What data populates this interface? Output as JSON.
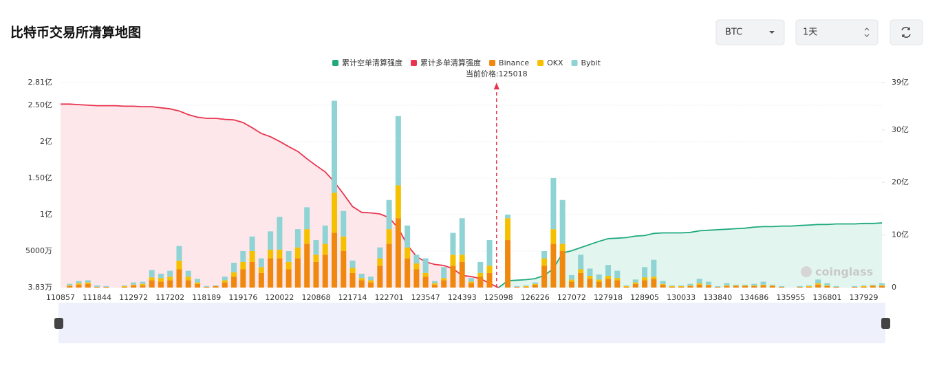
{
  "header": {
    "title": "比特币交易所清算地图"
  },
  "controls": {
    "symbol": "BTC",
    "range": "1天"
  },
  "watermark": "coinglass",
  "chart_data": {
    "type": "bar",
    "stacked": true,
    "annotation": "当前价格:125018",
    "categories": [
      "110857",
      null,
      null,
      null,
      "111844",
      null,
      null,
      null,
      "112972",
      null,
      null,
      null,
      "117202",
      null,
      null,
      null,
      "118189",
      null,
      null,
      null,
      "119176",
      null,
      null,
      null,
      "120022",
      null,
      null,
      null,
      "120868",
      null,
      null,
      null,
      "121714",
      null,
      null,
      null,
      "122701",
      null,
      null,
      null,
      "123547",
      null,
      null,
      null,
      "124393",
      null,
      null,
      null,
      "125098",
      null,
      null,
      null,
      "126226",
      null,
      null,
      null,
      "127072",
      null,
      null,
      null,
      "127918",
      null,
      null,
      null,
      "128905",
      null,
      null,
      null,
      "130033",
      null,
      null,
      null,
      "133840",
      null,
      null,
      null,
      "134686",
      null,
      null,
      null,
      "135955",
      null,
      null,
      null,
      "136801",
      null,
      null,
      null,
      "137929",
      null,
      null
    ],
    "ylim": [
      0.000383,
      2.81
    ],
    "yticks": [
      {
        "value": 0.000383,
        "label": "3.83万"
      },
      {
        "value": 0.5,
        "label": "5000万"
      },
      {
        "value": 1,
        "label": "1亿"
      },
      {
        "value": 1.5,
        "label": "1.50亿"
      },
      {
        "value": 2,
        "label": "2亿"
      },
      {
        "value": 2.5,
        "label": "2.50亿"
      },
      {
        "value": 2.81,
        "label": "2.81亿"
      }
    ],
    "y2lim": [
      0,
      39
    ],
    "y2ticks": [
      0,
      {
        "value": 10,
        "label": "10亿"
      },
      {
        "value": 20,
        "label": "20亿"
      },
      {
        "value": 30,
        "label": "30亿"
      },
      {
        "value": 39,
        "label": "39亿"
      }
    ],
    "grid": true,
    "series": [
      {
        "name": "累计空单清算强度",
        "type": "line",
        "axis": "y2",
        "color": "#1fa97f",
        "area_color": "#e2f5ee",
        "values": [
          null,
          null,
          null,
          null,
          null,
          null,
          null,
          null,
          null,
          null,
          null,
          null,
          null,
          null,
          null,
          null,
          null,
          null,
          null,
          null,
          null,
          null,
          null,
          null,
          null,
          null,
          null,
          null,
          null,
          null,
          null,
          null,
          null,
          null,
          null,
          null,
          null,
          null,
          null,
          null,
          null,
          null,
          null,
          null,
          null,
          null,
          null,
          null,
          0,
          1.3,
          1.4,
          1.5,
          1.7,
          2.3,
          3.6,
          6.6,
          7.0,
          7.6,
          8.2,
          8.8,
          9.3,
          9.4,
          9.5,
          9.8,
          9.9,
          10.3,
          10.4,
          10.4,
          10.4,
          10.5,
          10.8,
          10.9,
          11.0,
          11.1,
          11.2,
          11.3,
          11.5,
          11.6,
          11.6,
          11.7,
          11.7,
          11.8,
          11.9,
          12.0,
          12.0,
          12.1,
          12.1,
          12.1,
          12.2,
          12.2,
          12.3
        ]
      },
      {
        "name": "累计多单清算强度",
        "type": "line",
        "axis": "y2",
        "color": "#e8344e",
        "area_color": "#fde7ea",
        "values": [
          34.9,
          34.9,
          34.8,
          34.7,
          34.6,
          34.6,
          34.6,
          34.5,
          34.5,
          34.4,
          34.4,
          34.2,
          34.0,
          33.6,
          32.9,
          32.4,
          32.2,
          32.2,
          32.0,
          31.9,
          31.4,
          30.4,
          29.3,
          28.7,
          27.8,
          26.8,
          25.9,
          24.5,
          23.2,
          22.0,
          20.1,
          17.8,
          15.4,
          14.3,
          14.2,
          14.0,
          13.3,
          11.3,
          8.1,
          5.9,
          4.9,
          4.4,
          4.2,
          3.6,
          2.3,
          2.1,
          1.7,
          0.8,
          0,
          null,
          null,
          null,
          null,
          null,
          null,
          null,
          null,
          null,
          null,
          null,
          null,
          null,
          null,
          null,
          null,
          null,
          null,
          null,
          null,
          null,
          null,
          null,
          null,
          null,
          null,
          null,
          null,
          null,
          null,
          null,
          null,
          null,
          null,
          null,
          null,
          null,
          null,
          null,
          null,
          null,
          null
        ]
      },
      {
        "name": "Binance",
        "type": "bar",
        "color": "#f0870e",
        "values": [
          0,
          0.02,
          0.04,
          0.05,
          0.01,
          0.01,
          0,
          0.01,
          0.03,
          0.03,
          0.1,
          0.08,
          0.1,
          0.25,
          0.1,
          0.05,
          0.01,
          0.02,
          0.07,
          0.15,
          0.25,
          0.35,
          0.2,
          0.4,
          0.4,
          0.25,
          0.4,
          0.6,
          0.35,
          0.45,
          0.75,
          0.5,
          0.2,
          0.1,
          0.07,
          0.3,
          0.6,
          0.95,
          0.4,
          0.25,
          0.15,
          0.04,
          0.1,
          0.3,
          0.35,
          0.06,
          0.15,
          0.2,
          0,
          0.65,
          0.01,
          0.01,
          0.04,
          0.3,
          0.6,
          0.5,
          0.08,
          0.2,
          0.12,
          0.08,
          0.12,
          0.1,
          0.01,
          0.05,
          0.1,
          0.12,
          0.04,
          0.01,
          0.01,
          0.02,
          0.04,
          0.03,
          0.01,
          0.02,
          0.02,
          0.02,
          0.02,
          0.03,
          0.02,
          0.01,
          0,
          0.01,
          0.01,
          0.04,
          0.02,
          0.01,
          0,
          0.01,
          0.01,
          0.02,
          0.02
        ]
      },
      {
        "name": "OKX",
        "type": "bar",
        "color": "#f5c000",
        "values": [
          0,
          0.01,
          0.02,
          0.02,
          0,
          0,
          0,
          0.01,
          0.01,
          0.02,
          0.04,
          0.05,
          0.05,
          0.12,
          0.05,
          0.02,
          0,
          0,
          0.03,
          0.06,
          0.1,
          0.15,
          0.08,
          0.12,
          0.12,
          0.1,
          0.15,
          0.2,
          0.1,
          0.15,
          0.55,
          0.2,
          0.07,
          0.03,
          0.03,
          0.1,
          0.2,
          0.45,
          0.15,
          0.08,
          0.05,
          0.02,
          0.03,
          0.15,
          0.1,
          0.02,
          0.05,
          0.1,
          0,
          0.3,
          0,
          0.01,
          0.01,
          0.1,
          0.2,
          0.1,
          0.03,
          0.05,
          0.04,
          0.03,
          0.04,
          0.03,
          0.01,
          0.02,
          0.04,
          0.03,
          0.01,
          0.01,
          0.01,
          0.01,
          0.02,
          0.01,
          0,
          0.01,
          0.01,
          0.01,
          0.01,
          0.01,
          0.01,
          0,
          0,
          0,
          0.01,
          0.02,
          0.01,
          0,
          0,
          0,
          0.01,
          0.01,
          0.01
        ]
      },
      {
        "name": "Bybit",
        "type": "bar",
        "color": "#8fd3d4",
        "values": [
          0,
          0.02,
          0.03,
          0.03,
          0.02,
          0.01,
          0,
          0.01,
          0.03,
          0.03,
          0.1,
          0.06,
          0.08,
          0.2,
          0.08,
          0.05,
          0.01,
          0.01,
          0.05,
          0.13,
          0.15,
          0.2,
          0.12,
          0.25,
          0.45,
          0.15,
          0.25,
          0.3,
          0.2,
          0.25,
          1.26,
          0.35,
          0.1,
          0.06,
          0.05,
          0.15,
          0.4,
          0.95,
          0.3,
          0.12,
          0.2,
          0.03,
          0.15,
          0.3,
          0.5,
          0.05,
          0.15,
          0.35,
          0,
          0.05,
          0.01,
          0.01,
          0.02,
          0.1,
          0.7,
          0.6,
          0.06,
          0.2,
          0.1,
          0.07,
          0.15,
          0.1,
          0.01,
          0.04,
          0.14,
          0.23,
          0.04,
          0.01,
          0.01,
          0.02,
          0.06,
          0.04,
          0.01,
          0.03,
          0.01,
          0.01,
          0.02,
          0.04,
          0.01,
          0.01,
          0,
          0.01,
          0.01,
          0.05,
          0.03,
          0.01,
          0,
          0.01,
          0.01,
          0.01,
          0.03
        ]
      }
    ]
  }
}
